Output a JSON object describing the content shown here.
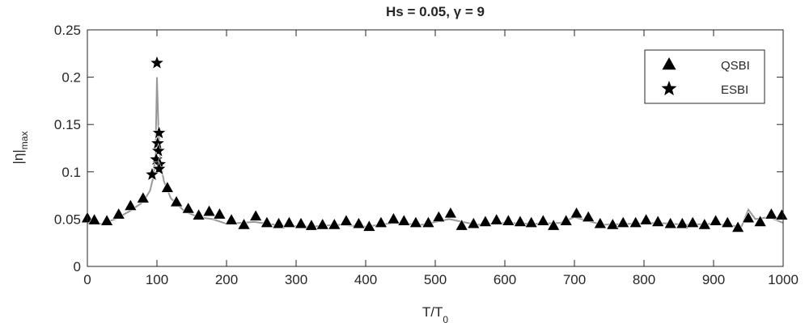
{
  "chart_data": {
    "type": "scatter",
    "title": "Hs = 0.05, γ = 9",
    "xlabel": "T/T",
    "xlabel_sub": "0",
    "ylabel": "|η|",
    "ylabel_sub": "max",
    "xlim": [
      0,
      1000
    ],
    "xticks": [
      0,
      100,
      200,
      300,
      400,
      500,
      600,
      700,
      800,
      900,
      1000
    ],
    "ylim": [
      0,
      0.25
    ],
    "yticks": [
      0,
      0.05,
      0.1,
      0.15,
      0.2,
      0.25
    ],
    "grid": false,
    "legend": "upper right",
    "series": [
      {
        "color": "#999999",
        "style": "line",
        "x": [
          0,
          20,
          40,
          60,
          80,
          90,
          95,
          98,
          100,
          102,
          105,
          110,
          120,
          140,
          160,
          180,
          200,
          240,
          280,
          320,
          360,
          400,
          440,
          480,
          520,
          560,
          600,
          640,
          680,
          700,
          740,
          780,
          820,
          860,
          900,
          940,
          950,
          960,
          980,
          1000
        ],
        "values": [
          0.046,
          0.045,
          0.05,
          0.058,
          0.068,
          0.08,
          0.095,
          0.12,
          0.2,
          0.15,
          0.11,
          0.09,
          0.072,
          0.058,
          0.052,
          0.05,
          0.045,
          0.047,
          0.043,
          0.042,
          0.044,
          0.042,
          0.046,
          0.044,
          0.05,
          0.044,
          0.046,
          0.045,
          0.046,
          0.052,
          0.044,
          0.045,
          0.046,
          0.044,
          0.045,
          0.042,
          0.06,
          0.05,
          0.052,
          0.046
        ]
      },
      {
        "name": "QSBI",
        "color": "#000000",
        "style": "triangle",
        "x": [
          0,
          10,
          28,
          45,
          62,
          80,
          115,
          128,
          145,
          160,
          175,
          190,
          207,
          225,
          242,
          258,
          275,
          290,
          307,
          322,
          338,
          355,
          372,
          390,
          405,
          422,
          440,
          455,
          472,
          490,
          505,
          522,
          538,
          555,
          572,
          588,
          605,
          622,
          638,
          655,
          670,
          688,
          703,
          720,
          737,
          755,
          770,
          788,
          803,
          820,
          838,
          855,
          870,
          887,
          903,
          920,
          935,
          950,
          967,
          983,
          998
        ],
        "values": [
          0.051,
          0.049,
          0.048,
          0.055,
          0.064,
          0.072,
          0.083,
          0.068,
          0.061,
          0.054,
          0.058,
          0.055,
          0.049,
          0.044,
          0.053,
          0.046,
          0.045,
          0.046,
          0.045,
          0.043,
          0.044,
          0.044,
          0.048,
          0.045,
          0.042,
          0.046,
          0.05,
          0.048,
          0.046,
          0.046,
          0.052,
          0.056,
          0.043,
          0.045,
          0.047,
          0.049,
          0.048,
          0.047,
          0.046,
          0.048,
          0.043,
          0.048,
          0.056,
          0.052,
          0.045,
          0.044,
          0.046,
          0.046,
          0.049,
          0.047,
          0.045,
          0.045,
          0.046,
          0.044,
          0.048,
          0.046,
          0.041,
          0.051,
          0.047,
          0.055,
          0.054
        ]
      },
      {
        "name": "ESBI",
        "color": "#000000",
        "style": "star",
        "x": [
          100,
          103,
          101,
          102,
          99,
          104,
          103,
          93
        ],
        "values": [
          0.215,
          0.141,
          0.13,
          0.122,
          0.113,
          0.108,
          0.103,
          0.097
        ]
      }
    ]
  }
}
